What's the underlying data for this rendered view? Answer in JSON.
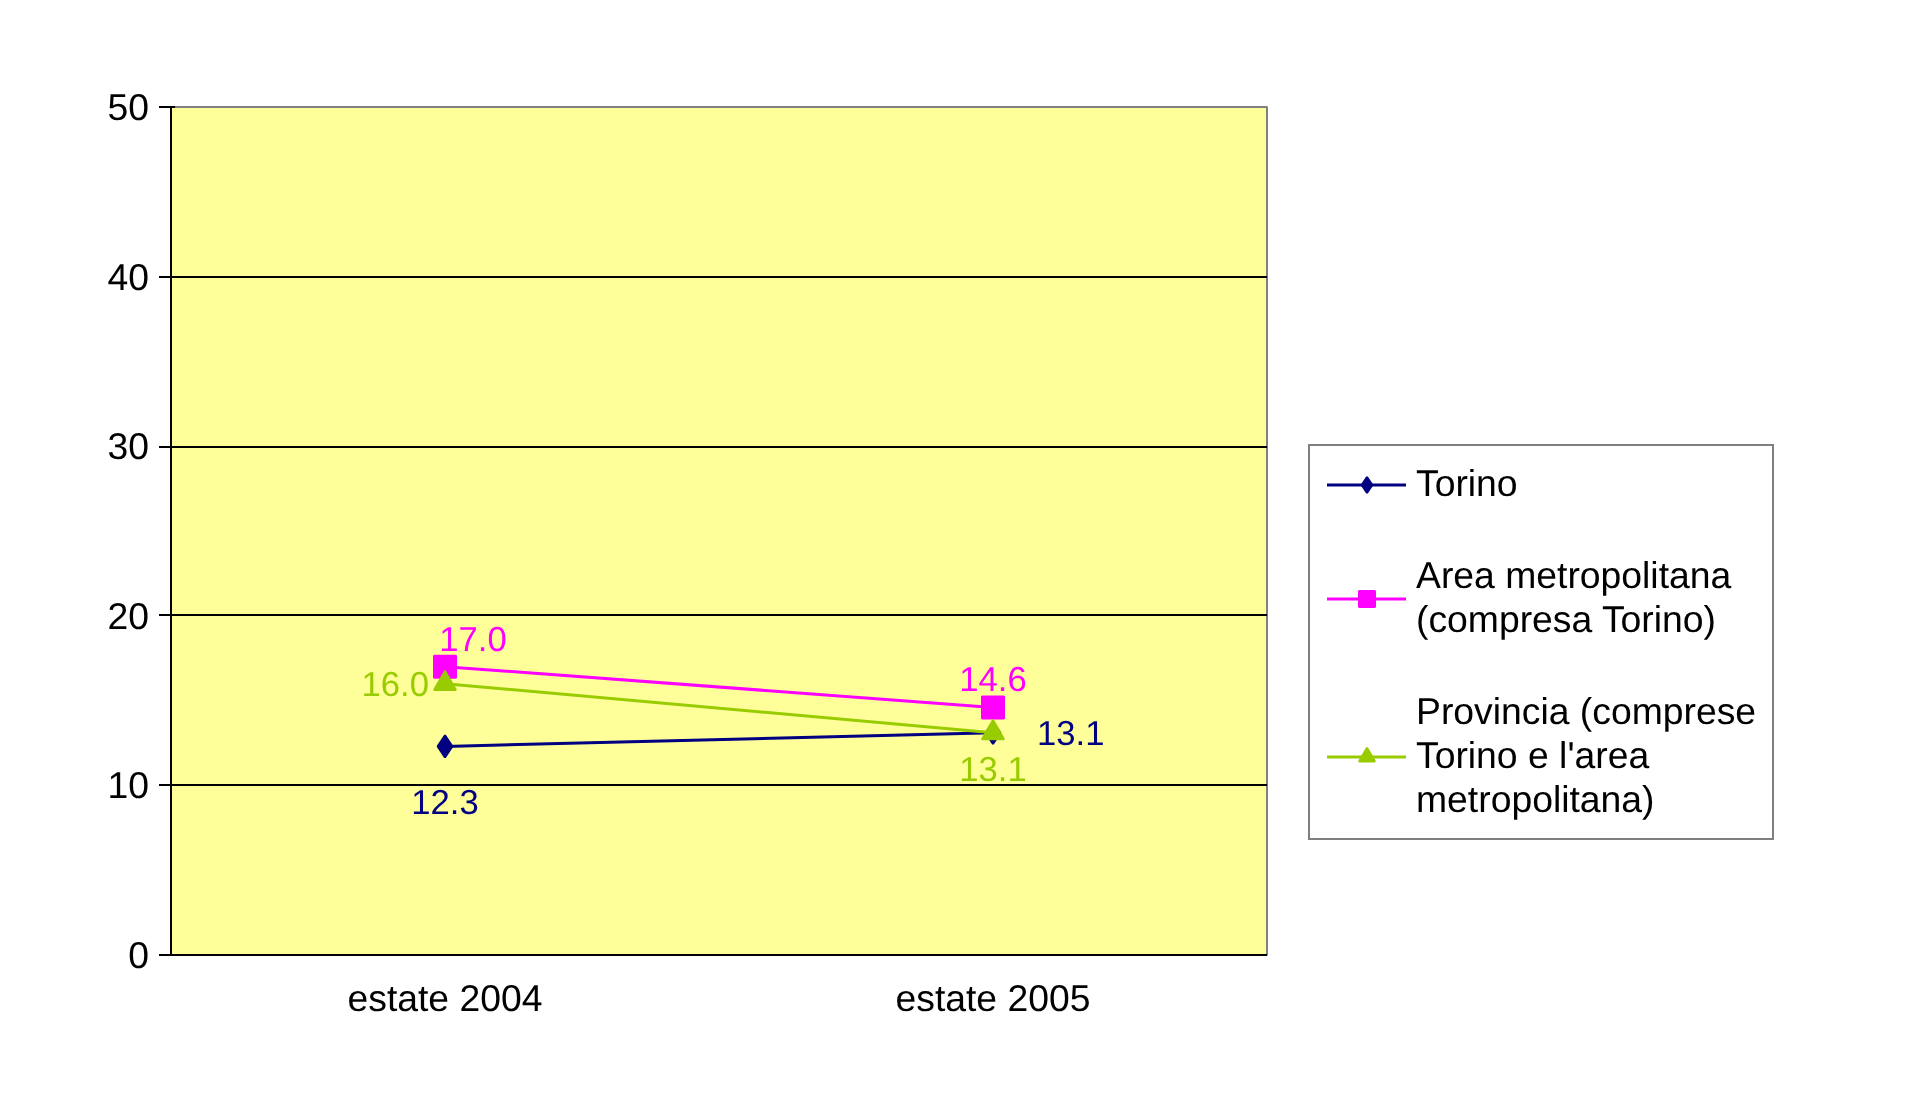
{
  "chart_data": {
    "type": "line",
    "categories": [
      "estate 2004",
      "estate 2005"
    ],
    "series": [
      {
        "name": "Torino",
        "color": "#000080",
        "marker": "diamond",
        "values": [
          12.3,
          13.1
        ],
        "value_labels": [
          "12.3",
          "13.1"
        ]
      },
      {
        "name": "Area metropolitana (compresa Torino)",
        "color": "#ff00ff",
        "marker": "square",
        "values": [
          17.0,
          14.6
        ],
        "value_labels": [
          "17.0",
          "14.6"
        ]
      },
      {
        "name": "Provincia (comprese Torino e l'area metropolitana)",
        "color": "#99cc00",
        "marker": "triangle",
        "values": [
          16.0,
          13.1
        ],
        "value_labels": [
          "16.0",
          "13.1"
        ]
      }
    ],
    "ylim": [
      0,
      50
    ],
    "yticks": [
      0,
      10,
      20,
      30,
      40,
      50
    ],
    "grid": "y",
    "legend": "right",
    "data_labels": true
  }
}
